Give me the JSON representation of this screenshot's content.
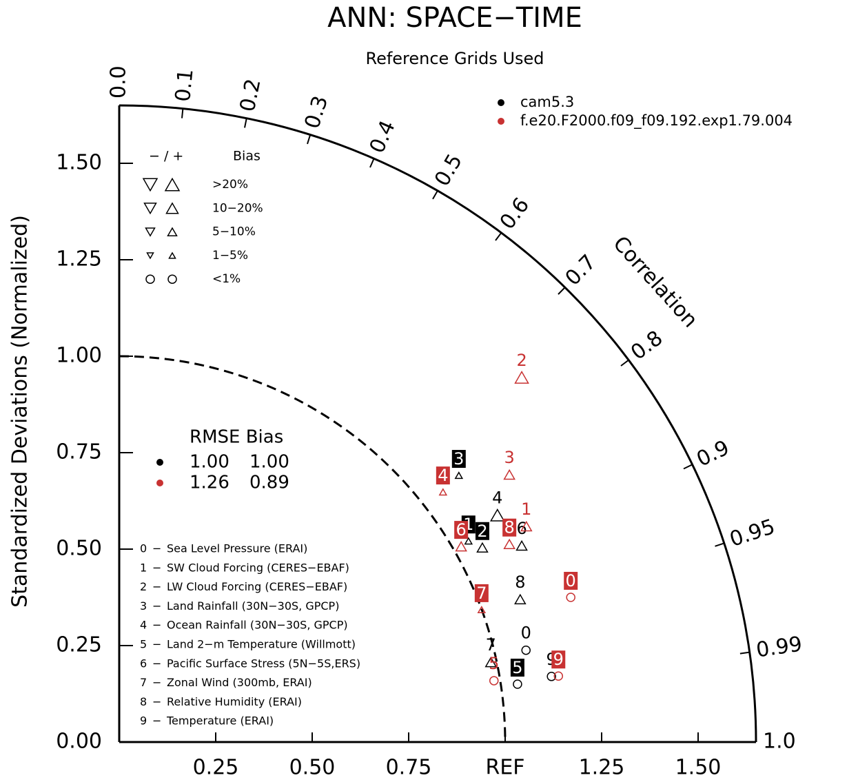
{
  "chart_data": {
    "type": "taylor",
    "title": "ANN: SPACE−TIME",
    "subtitle": "Reference Grids Used",
    "ylabel": "Standardized Deviations (Normalized)",
    "corr_label": "Correlation",
    "xlim": [
      0,
      1.65
    ],
    "ylim": [
      0,
      1.65
    ],
    "xticks": [
      {
        "value": 0.25,
        "label": "0.25"
      },
      {
        "value": 0.5,
        "label": "0.50"
      },
      {
        "value": 0.75,
        "label": "0.75"
      },
      {
        "value": 1,
        "label": "REF"
      },
      {
        "value": 1.25,
        "label": "1.25"
      },
      {
        "value": 1.5,
        "label": "1.50"
      }
    ],
    "yticks": [
      {
        "value": 0,
        "label": "0.00"
      },
      {
        "value": 0.25,
        "label": "0.25"
      },
      {
        "value": 0.5,
        "label": "0.50"
      },
      {
        "value": 0.75,
        "label": "0.75"
      },
      {
        "value": 1,
        "label": "1.00"
      },
      {
        "value": 1.25,
        "label": "1.25"
      },
      {
        "value": 1.5,
        "label": "1.50"
      }
    ],
    "corr_ticks": [
      {
        "value": 0,
        "label": "0.0"
      },
      0.1,
      0.2,
      0.3,
      0.4,
      0.5,
      0.6,
      0.7,
      0.8,
      0.9,
      0.95,
      0.99,
      {
        "value": 1,
        "label": "1.0"
      }
    ],
    "bias_legend": {
      "header": "− / +",
      "title": "Bias",
      "rows": [
        ">20%",
        "10−20%",
        "5−10%",
        "1−5%",
        "<1%"
      ]
    },
    "rmse_legend": {
      "header": "RMSE Bias",
      "rows": [
        {
          "rmse": "1.00",
          "bias": "1.00"
        },
        {
          "rmse": "1.26",
          "bias": "0.89"
        }
      ]
    },
    "variables": [
      {
        "id": "0",
        "name": "Sea Level Pressure (ERAI)"
      },
      {
        "id": "1",
        "name": "SW Cloud Forcing (CERES−EBAF)"
      },
      {
        "id": "2",
        "name": "LW Cloud Forcing (CERES−EBAF)"
      },
      {
        "id": "3",
        "name": "Land Rainfall (30N−30S, GPCP)"
      },
      {
        "id": "4",
        "name": "Ocean Rainfall (30N−30S, GPCP)"
      },
      {
        "id": "5",
        "name": "Land 2−m Temperature (Willmott)"
      },
      {
        "id": "6",
        "name": "Pacific Surface Stress (5N−5S,ERS)"
      },
      {
        "id": "7",
        "name": "Zonal Wind (300mb, ERAI)"
      },
      {
        "id": "8",
        "name": "Relative Humidity (ERAI)"
      },
      {
        "id": "9",
        "name": "Temperature (ERAI)"
      }
    ],
    "series": [
      {
        "name": "cam5.3",
        "color": "#000000",
        "labels": [
          "0",
          "1",
          "2",
          "3",
          "4",
          "5",
          "6",
          "7",
          "8",
          "9"
        ],
        "x": [
          1.054,
          0.905,
          0.941,
          0.88,
          0.98,
          1.032,
          1.043,
          0.963,
          1.039,
          1.12
        ],
        "y": [
          0.238,
          0.521,
          0.504,
          0.691,
          0.588,
          0.15,
          0.509,
          0.207,
          0.37,
          0.17
        ],
        "marker": [
          "circle",
          "triangle-up-small",
          "triangle-up-medium",
          "triangle-up-small",
          "triangle-up-large",
          "circle",
          "triangle-up-medium",
          "triangle-up-medium",
          "triangle-up-medium",
          "circle"
        ],
        "label_box": [
          false,
          true,
          true,
          true,
          false,
          true,
          false,
          false,
          false,
          false
        ]
      },
      {
        "name": "f.e20.F2000.f09_f09.192.exp1.79.004",
        "color": "#c83232",
        "labels": [
          "0",
          "1",
          "2",
          "3",
          "4",
          "5",
          "6",
          "7",
          "8",
          "9"
        ],
        "x": [
          1.17,
          1.055,
          1.043,
          1.011,
          0.839,
          0.971,
          0.886,
          0.939,
          1.011,
          1.138
        ],
        "y": [
          0.375,
          0.559,
          0.945,
          0.693,
          0.648,
          0.159,
          0.507,
          0.343,
          0.513,
          0.171
        ],
        "marker": [
          "circle",
          "triangle-up-medium",
          "triangle-up-large",
          "triangle-up-medium",
          "triangle-up-small",
          "circle",
          "triangle-up-medium",
          "triangle-up-small",
          "triangle-up-medium",
          "circle"
        ],
        "label_box": [
          true,
          false,
          false,
          false,
          true,
          false,
          true,
          true,
          true,
          true
        ]
      }
    ]
  }
}
